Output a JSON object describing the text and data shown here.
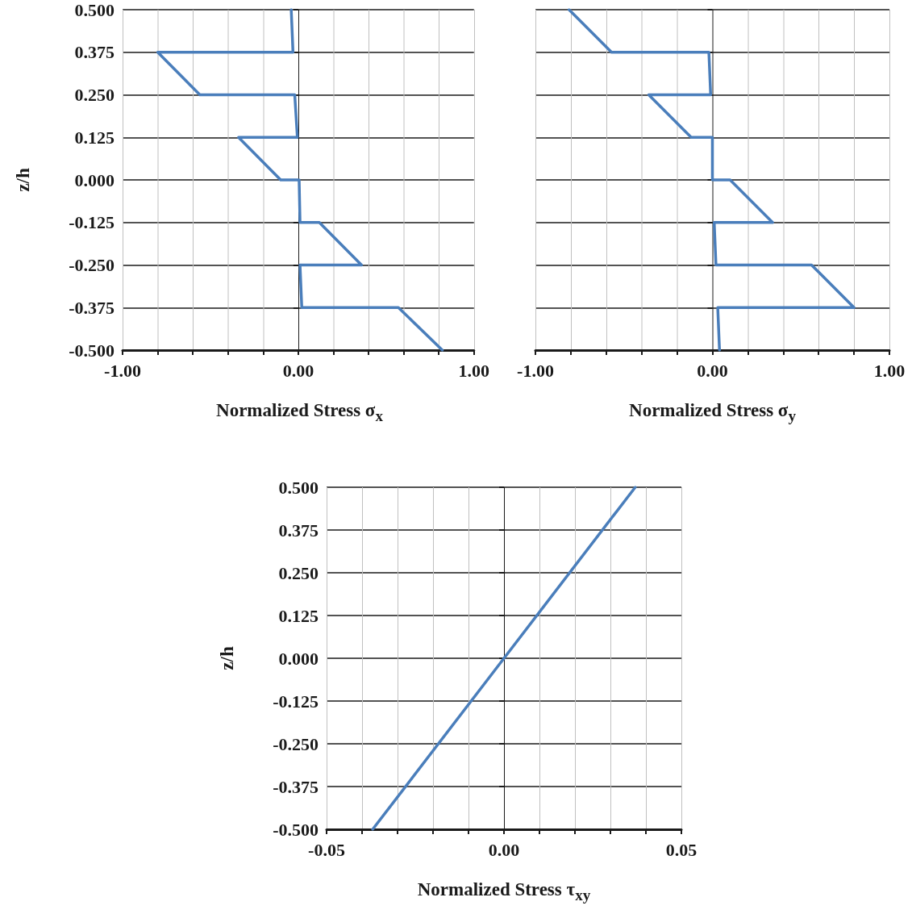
{
  "chart_data": [
    {
      "type": "line",
      "xlabel": "Normalized Stress σ$_{x}$",
      "ylabel": "z/h",
      "xlim": [
        -1,
        1
      ],
      "ylim": [
        -0.5,
        0.5
      ],
      "xticks": [
        {
          "value": -1,
          "label": "-1.00"
        },
        {
          "value": -0.8,
          "label": null
        },
        {
          "value": -0.6,
          "label": null
        },
        {
          "value": -0.4,
          "label": null
        },
        {
          "value": -0.2,
          "label": null
        },
        {
          "value": 0,
          "label": "0.00"
        },
        {
          "value": 0.2,
          "label": null
        },
        {
          "value": 0.4,
          "label": null
        },
        {
          "value": 0.6,
          "label": null
        },
        {
          "value": 0.8,
          "label": null
        },
        {
          "value": 1,
          "label": "1.00"
        }
      ],
      "yticks": [
        {
          "value": -0.5,
          "label": "-0.500"
        },
        {
          "value": -0.375,
          "label": "-0.375"
        },
        {
          "value": -0.25,
          "label": "-0.250"
        },
        {
          "value": -0.125,
          "label": "-0.125"
        },
        {
          "value": 0,
          "label": "0.000"
        },
        {
          "value": 0.125,
          "label": "0.125"
        },
        {
          "value": 0.25,
          "label": "0.250"
        },
        {
          "value": 0.375,
          "label": "0.375"
        },
        {
          "value": 0.5,
          "label": "0.500"
        }
      ],
      "grid": true,
      "marker": "none",
      "line_style": "solid",
      "series": [
        {
          "color": "#4a7ebb",
          "x": [
            -0.04,
            -0.03,
            -0.8,
            -0.56,
            -0.02,
            -0.005,
            -0.34,
            -0.1,
            0.005,
            0.01,
            0.12,
            0.36,
            0.01,
            0.02,
            0.57,
            0.82
          ],
          "values": [
            0.5,
            0.375,
            0.375,
            0.25,
            0.25,
            0.125,
            0.125,
            0,
            0,
            -0.125,
            -0.125,
            -0.25,
            -0.25,
            -0.375,
            -0.375,
            -0.5
          ]
        }
      ]
    },
    {
      "type": "line",
      "xlabel": "Normalized Stress σ$_{y}$",
      "xlim": [
        -1,
        1
      ],
      "ylim": [
        -0.5,
        0.5
      ],
      "tick_labels": "x",
      "xticks": [
        {
          "value": -1,
          "label": "-1.00"
        },
        {
          "value": -0.8,
          "label": null
        },
        {
          "value": -0.6,
          "label": null
        },
        {
          "value": -0.4,
          "label": null
        },
        {
          "value": -0.2,
          "label": null
        },
        {
          "value": 0,
          "label": "0.00"
        },
        {
          "value": 0.2,
          "label": null
        },
        {
          "value": 0.4,
          "label": null
        },
        {
          "value": 0.6,
          "label": null
        },
        {
          "value": 0.8,
          "label": null
        },
        {
          "value": 1,
          "label": "1.00"
        }
      ],
      "yticks": [
        {
          "value": -0.5,
          "label": null
        },
        {
          "value": -0.375,
          "label": null
        },
        {
          "value": -0.25,
          "label": null
        },
        {
          "value": -0.125,
          "label": null
        },
        {
          "value": 0,
          "label": null
        },
        {
          "value": 0.125,
          "label": null
        },
        {
          "value": 0.25,
          "label": null
        },
        {
          "value": 0.375,
          "label": null
        },
        {
          "value": 0.5,
          "label": null
        }
      ],
      "grid": true,
      "marker": "none",
      "line_style": "solid",
      "series": [
        {
          "color": "#4a7ebb",
          "x": [
            -0.81,
            -0.57,
            -0.02,
            -0.01,
            -0.36,
            -0.12,
            0,
            0,
            0.1,
            0.34,
            0.01,
            0.02,
            0.56,
            0.8,
            0.03,
            0.04
          ],
          "values": [
            0.5,
            0.375,
            0.375,
            0.25,
            0.25,
            0.125,
            0.125,
            0,
            0,
            -0.125,
            -0.125,
            -0.25,
            -0.25,
            -0.375,
            -0.375,
            -0.5
          ]
        }
      ]
    },
    {
      "type": "line",
      "xlabel": "Normalized Stress τ$_{xy}$",
      "ylabel": "z/h",
      "xlim": [
        -0.05,
        0.05
      ],
      "ylim": [
        -0.5,
        0.5
      ],
      "xticks": [
        {
          "value": -0.05,
          "label": "-0.05"
        },
        {
          "value": -0.04,
          "label": null
        },
        {
          "value": -0.03,
          "label": null
        },
        {
          "value": -0.02,
          "label": null
        },
        {
          "value": -0.01,
          "label": null
        },
        {
          "value": 0,
          "label": "0.00"
        },
        {
          "value": 0.01,
          "label": null
        },
        {
          "value": 0.02,
          "label": null
        },
        {
          "value": 0.03,
          "label": null
        },
        {
          "value": 0.04,
          "label": null
        },
        {
          "value": 0.05,
          "label": "0.05"
        }
      ],
      "yticks": [
        {
          "value": -0.5,
          "label": "-0.500"
        },
        {
          "value": -0.375,
          "label": "-0.375"
        },
        {
          "value": -0.25,
          "label": "-0.250"
        },
        {
          "value": -0.125,
          "label": "-0.125"
        },
        {
          "value": 0,
          "label": "0.000"
        },
        {
          "value": 0.125,
          "label": "0.125"
        },
        {
          "value": 0.25,
          "label": "0.250"
        },
        {
          "value": 0.375,
          "label": "0.375"
        },
        {
          "value": 0.5,
          "label": "0.500"
        }
      ],
      "grid": true,
      "marker": "none",
      "line_style": "solid",
      "series": [
        {
          "color": "#4a7ebb",
          "x": [
            -0.037,
            0,
            0.037
          ],
          "values": [
            -0.5,
            0,
            0.5
          ]
        }
      ]
    }
  ]
}
